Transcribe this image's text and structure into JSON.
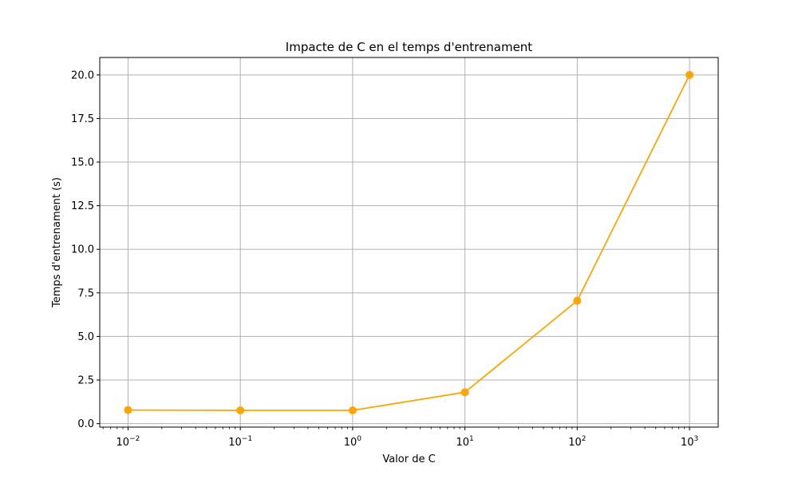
{
  "chart_data": {
    "type": "line",
    "title": "Impacte de C en el temps d'entrenament",
    "xlabel": "Valor de C",
    "ylabel": "Temps d'entrenament (s)",
    "xscale": "log",
    "x": [
      0.01,
      0.1,
      1,
      10,
      100,
      1000
    ],
    "x_tick_labels": [
      {
        "base": "10",
        "exp": "−2"
      },
      {
        "base": "10",
        "exp": "−1"
      },
      {
        "base": "10",
        "exp": "0"
      },
      {
        "base": "10",
        "exp": "1"
      },
      {
        "base": "10",
        "exp": "2"
      },
      {
        "base": "10",
        "exp": "3"
      }
    ],
    "series": [
      {
        "values": [
          0.78,
          0.76,
          0.76,
          1.8,
          7.05,
          20.0
        ],
        "color": "#ffa500",
        "marker": "circle"
      }
    ],
    "xlim": [
      0.0056,
      1800
    ],
    "ylim": [
      -0.2,
      21.0
    ],
    "y_ticks": [
      "0.0",
      "2.5",
      "5.0",
      "7.5",
      "10.0",
      "12.5",
      "15.0",
      "17.5",
      "20.0"
    ],
    "grid": true,
    "legend": "none"
  }
}
